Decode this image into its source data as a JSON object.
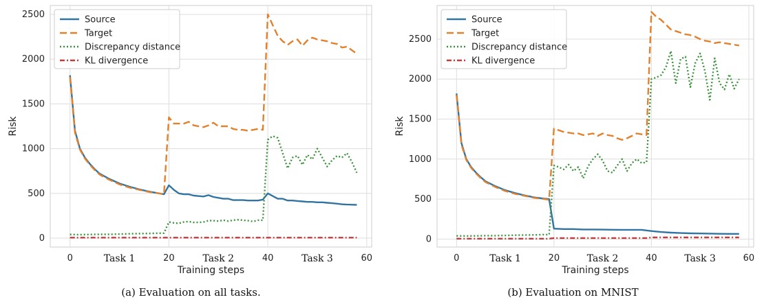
{
  "chart_data": [
    {
      "type": "line",
      "caption": "(a)  Evaluation on all tasks.",
      "xlabel": "Training steps",
      "ylabel": "Risk",
      "xlim": [
        -4,
        61
      ],
      "ylim": [
        -100,
        2600
      ],
      "xticks": [
        0,
        20,
        40,
        60
      ],
      "yticks": [
        0,
        500,
        1000,
        1500,
        2000,
        2500
      ],
      "task_labels": [
        {
          "x": 10,
          "label": "Task 1"
        },
        {
          "x": 30,
          "label": "Task 2"
        },
        {
          "x": 50,
          "label": "Task 3"
        }
      ],
      "grid": true,
      "legend": "top-left",
      "series": [
        {
          "name": "Source",
          "color": "#3274a1",
          "dash": "solid",
          "x": [
            0,
            1,
            2,
            3,
            4,
            5,
            6,
            8,
            10,
            12,
            14,
            16,
            18,
            19,
            20,
            21,
            22,
            23,
            24,
            25,
            26,
            27,
            28,
            29,
            30,
            31,
            32,
            33,
            34,
            35,
            36,
            37,
            38,
            39,
            40,
            41,
            42,
            43,
            44,
            45,
            46,
            47,
            48,
            49,
            50,
            51,
            52,
            53,
            54,
            55,
            56,
            57,
            58
          ],
          "y": [
            1820,
            1200,
            1000,
            900,
            830,
            770,
            720,
            660,
            610,
            575,
            545,
            520,
            500,
            490,
            590,
            540,
            500,
            490,
            490,
            475,
            470,
            465,
            480,
            460,
            450,
            440,
            440,
            425,
            425,
            425,
            420,
            420,
            420,
            430,
            500,
            470,
            440,
            440,
            420,
            420,
            415,
            410,
            405,
            405,
            400,
            400,
            395,
            390,
            385,
            378,
            375,
            373,
            372
          ]
        },
        {
          "name": "Target",
          "color": "#e1812c",
          "dash": "10,5",
          "x": [
            0,
            1,
            2,
            3,
            4,
            5,
            6,
            8,
            10,
            12,
            14,
            16,
            18,
            19,
            20,
            21,
            22,
            23,
            24,
            25,
            26,
            27,
            28,
            29,
            30,
            31,
            32,
            33,
            34,
            35,
            36,
            37,
            38,
            39,
            40,
            41,
            42,
            43,
            44,
            45,
            46,
            47,
            48,
            49,
            50,
            51,
            52,
            53,
            54,
            55,
            56,
            57,
            58
          ],
          "y": [
            1800,
            1180,
            990,
            890,
            820,
            760,
            710,
            650,
            600,
            565,
            540,
            515,
            500,
            490,
            1350,
            1280,
            1280,
            1280,
            1300,
            1260,
            1250,
            1240,
            1260,
            1290,
            1250,
            1250,
            1250,
            1220,
            1210,
            1210,
            1200,
            1210,
            1220,
            1210,
            2500,
            2380,
            2260,
            2200,
            2160,
            2200,
            2220,
            2150,
            2210,
            2240,
            2220,
            2210,
            2200,
            2180,
            2170,
            2130,
            2140,
            2100,
            2060
          ]
        },
        {
          "name": "Discrepancy distance",
          "color": "#3a923a",
          "dash": "2,3",
          "x": [
            0,
            2,
            4,
            6,
            8,
            10,
            12,
            14,
            16,
            18,
            19,
            20,
            21,
            22,
            23,
            24,
            25,
            26,
            27,
            28,
            29,
            30,
            31,
            32,
            33,
            34,
            35,
            36,
            37,
            38,
            39,
            40,
            41,
            42,
            43,
            44,
            45,
            46,
            47,
            48,
            49,
            50,
            51,
            52,
            53,
            54,
            55,
            56,
            57,
            58
          ],
          "y": [
            40,
            38,
            40,
            42,
            42,
            45,
            48,
            50,
            52,
            55,
            55,
            180,
            170,
            165,
            180,
            185,
            175,
            175,
            180,
            195,
            195,
            190,
            200,
            190,
            200,
            205,
            200,
            195,
            185,
            200,
            200,
            1100,
            1140,
            1120,
            950,
            780,
            900,
            920,
            820,
            930,
            880,
            1000,
            900,
            800,
            870,
            920,
            900,
            950,
            850,
            730
          ]
        },
        {
          "name": "KL divergence",
          "color": "#c03d3e",
          "dash": "7,3,2,3",
          "x": [
            0,
            10,
            20,
            30,
            40,
            50,
            58
          ],
          "y": [
            5,
            5,
            5,
            5,
            5,
            5,
            5
          ]
        }
      ]
    },
    {
      "type": "line",
      "caption": "(b)  Evaluation on MNIST",
      "xlabel": "Training steps",
      "ylabel": "Risk",
      "xlim": [
        -4,
        61
      ],
      "ylim": [
        -100,
        2920
      ],
      "xticks": [
        0,
        20,
        40,
        60
      ],
      "yticks": [
        0,
        500,
        1000,
        1500,
        2000,
        2500
      ],
      "task_labels": [
        {
          "x": 10,
          "label": "Task 1"
        },
        {
          "x": 30,
          "label": "Task 2"
        },
        {
          "x": 50,
          "label": "Task 3"
        }
      ],
      "grid": true,
      "legend": "top-left",
      "series": [
        {
          "name": "Source",
          "color": "#3274a1",
          "dash": "solid",
          "x": [
            0,
            1,
            2,
            3,
            4,
            5,
            6,
            8,
            10,
            12,
            14,
            16,
            18,
            19,
            20,
            22,
            24,
            26,
            28,
            30,
            32,
            34,
            36,
            38,
            40,
            42,
            44,
            46,
            48,
            50,
            52,
            54,
            56,
            58
          ],
          "y": [
            1820,
            1200,
            1000,
            900,
            830,
            770,
            720,
            660,
            610,
            575,
            545,
            520,
            505,
            500,
            130,
            125,
            125,
            120,
            120,
            118,
            116,
            115,
            115,
            115,
            100,
            88,
            80,
            75,
            72,
            70,
            68,
            66,
            65,
            65
          ]
        },
        {
          "name": "Target",
          "color": "#e1812c",
          "dash": "10,5",
          "x": [
            0,
            1,
            2,
            3,
            4,
            5,
            6,
            8,
            10,
            12,
            14,
            16,
            18,
            19,
            20,
            21,
            22,
            23,
            24,
            25,
            26,
            27,
            28,
            29,
            30,
            31,
            32,
            33,
            34,
            35,
            36,
            37,
            38,
            39,
            40,
            41,
            42,
            43,
            44,
            45,
            46,
            47,
            48,
            49,
            50,
            51,
            52,
            53,
            54,
            55,
            56,
            57,
            58
          ],
          "y": [
            1800,
            1180,
            990,
            890,
            820,
            760,
            710,
            650,
            600,
            565,
            540,
            515,
            500,
            490,
            1380,
            1360,
            1340,
            1330,
            1320,
            1320,
            1300,
            1310,
            1320,
            1290,
            1320,
            1300,
            1290,
            1260,
            1240,
            1260,
            1290,
            1320,
            1310,
            1300,
            2840,
            2780,
            2740,
            2680,
            2620,
            2600,
            2580,
            2560,
            2550,
            2530,
            2500,
            2480,
            2470,
            2450,
            2460,
            2450,
            2440,
            2430,
            2420
          ]
        },
        {
          "name": "Discrepancy distance",
          "color": "#3a923a",
          "dash": "2,3",
          "x": [
            0,
            2,
            4,
            6,
            8,
            10,
            12,
            14,
            16,
            18,
            19,
            20,
            21,
            22,
            23,
            24,
            25,
            26,
            27,
            28,
            29,
            30,
            31,
            32,
            33,
            34,
            35,
            36,
            37,
            38,
            39,
            40,
            41,
            42,
            43,
            44,
            45,
            46,
            47,
            48,
            49,
            50,
            51,
            52,
            53,
            54,
            55,
            56,
            57,
            58
          ],
          "y": [
            40,
            38,
            40,
            42,
            42,
            45,
            48,
            50,
            52,
            55,
            55,
            920,
            900,
            870,
            930,
            850,
            900,
            760,
            910,
            1000,
            1060,
            980,
            850,
            830,
            920,
            1000,
            850,
            950,
            1000,
            950,
            960,
            2000,
            2020,
            2050,
            2150,
            2350,
            1950,
            2250,
            2280,
            1900,
            2200,
            2320,
            2100,
            1740,
            2260,
            1950,
            1870,
            2060,
            1880,
            2000
          ]
        },
        {
          "name": "KL divergence",
          "color": "#c03d3e",
          "dash": "7,3,2,3",
          "x": [
            0,
            10,
            19,
            20,
            30,
            39,
            40,
            50,
            58
          ],
          "y": [
            5,
            5,
            5,
            12,
            12,
            12,
            20,
            20,
            20
          ]
        }
      ]
    }
  ]
}
